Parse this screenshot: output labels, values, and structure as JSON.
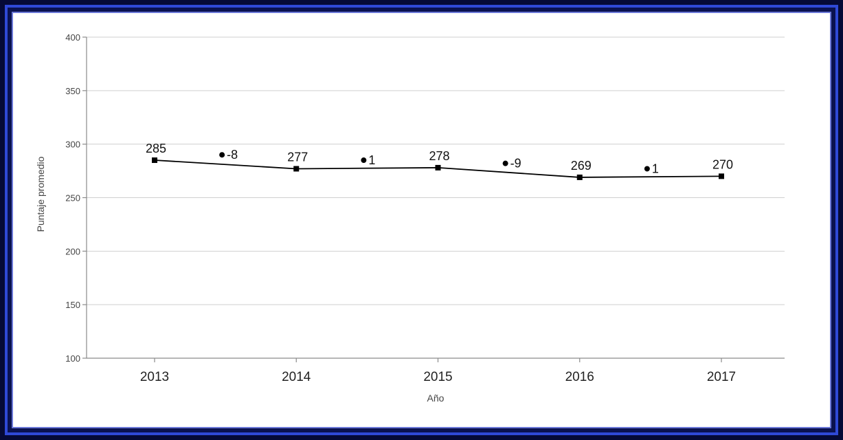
{
  "chart_data": {
    "type": "line",
    "title": "",
    "xlabel": "Año",
    "ylabel": "Puntaje promedio",
    "categories": [
      "2013",
      "2014",
      "2015",
      "2016",
      "2017"
    ],
    "series": [
      {
        "values": [
          285,
          277,
          278,
          269,
          270
        ]
      }
    ],
    "point_labels": [
      "285",
      "277",
      "278",
      "269",
      "270"
    ],
    "differences": {
      "labels": [
        "-8",
        "1",
        "-9",
        "1"
      ],
      "marker_values": [
        290,
        285,
        282,
        277
      ]
    },
    "ylim": [
      100,
      400
    ],
    "yticks": [
      100,
      150,
      200,
      250,
      300,
      350,
      400
    ],
    "grid": true,
    "legend": "none",
    "colors": {
      "line": "#000000",
      "grid": "#cfcfcf",
      "frame_outer": "#050a36",
      "frame_accent": "#2f49d6"
    }
  }
}
